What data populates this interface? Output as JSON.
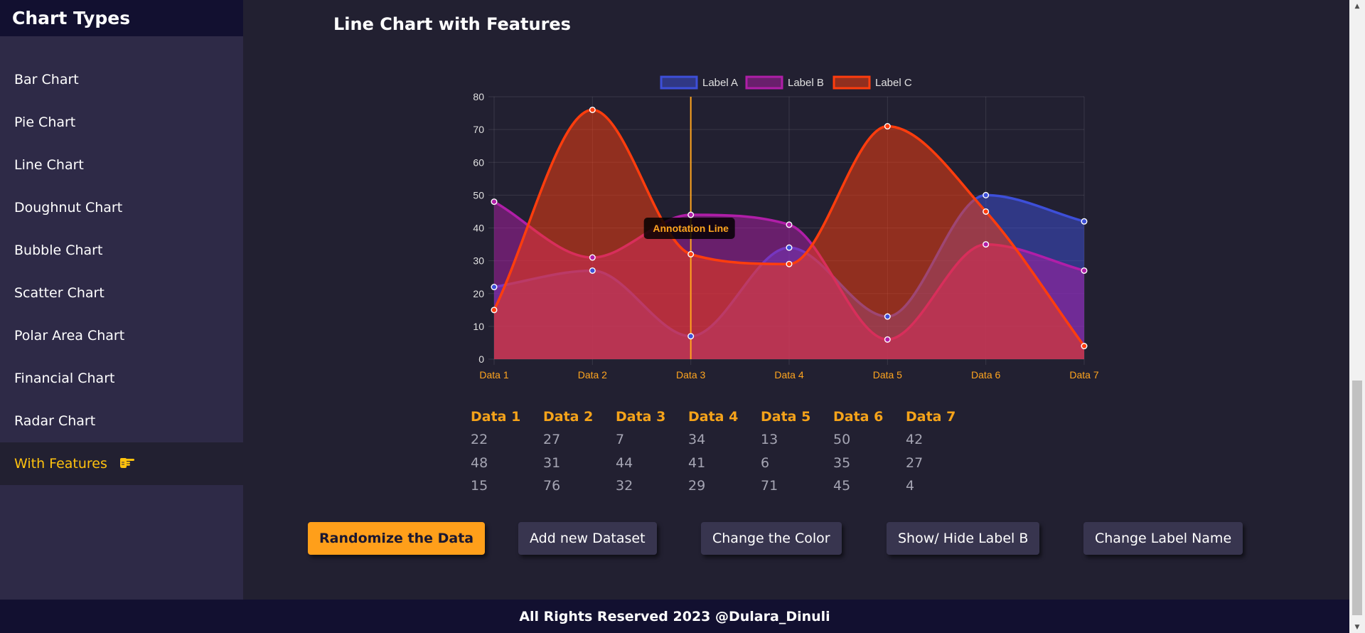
{
  "sidebar": {
    "title": "Chart Types",
    "items": [
      {
        "label": "Bar Chart"
      },
      {
        "label": "Pie Chart"
      },
      {
        "label": "Line Chart"
      },
      {
        "label": "Doughnut Chart"
      },
      {
        "label": "Bubble Chart"
      },
      {
        "label": "Scatter Chart"
      },
      {
        "label": "Polar Area Chart"
      },
      {
        "label": "Financial Chart"
      },
      {
        "label": "Radar Chart"
      },
      {
        "label": "With Features",
        "icon": "pointing-hand-icon",
        "active": true
      }
    ]
  },
  "main": {
    "title": "Line Chart with Features"
  },
  "chart_data": {
    "type": "area",
    "categories": [
      "Data 1",
      "Data 2",
      "Data 3",
      "Data 4",
      "Data 5",
      "Data 6",
      "Data 7"
    ],
    "series": [
      {
        "name": "Label A",
        "values": [
          22,
          27,
          7,
          34,
          13,
          50,
          42
        ],
        "color": "#3d4fd9"
      },
      {
        "name": "Label B",
        "values": [
          48,
          31,
          44,
          41,
          6,
          35,
          27
        ],
        "color": "#b01ea8"
      },
      {
        "name": "Label C",
        "values": [
          15,
          76,
          32,
          29,
          71,
          45,
          4
        ],
        "color": "#ff3d0d"
      }
    ],
    "ylim": [
      0,
      80
    ],
    "yticks": [
      0,
      10,
      20,
      30,
      40,
      50,
      60,
      70,
      80
    ],
    "grid": true,
    "legend": "top-center",
    "annotation": {
      "label": "Annotation Line",
      "x": "Data 3",
      "color": "#ffa51f"
    },
    "tick_color_x": "#ffa51f",
    "tick_color_y": "#e0e0e0"
  },
  "table": {
    "headers": [
      "Data 1",
      "Data 2",
      "Data 3",
      "Data 4",
      "Data 5",
      "Data 6",
      "Data 7"
    ],
    "rows": [
      [
        "22",
        "27",
        "7",
        "34",
        "13",
        "50",
        "42"
      ],
      [
        "48",
        "31",
        "44",
        "41",
        "6",
        "35",
        "27"
      ],
      [
        "15",
        "76",
        "32",
        "29",
        "71",
        "45",
        "4"
      ]
    ]
  },
  "buttons": {
    "randomize": "Randomize the Data",
    "add_dataset": "Add new Dataset",
    "change_color": "Change the Color",
    "toggle_label": "Show/ Hide Label B",
    "change_label": "Change Label Name"
  },
  "footer": {
    "text": "All Rights Reserved 2023 @Dulara_Dinuli"
  }
}
